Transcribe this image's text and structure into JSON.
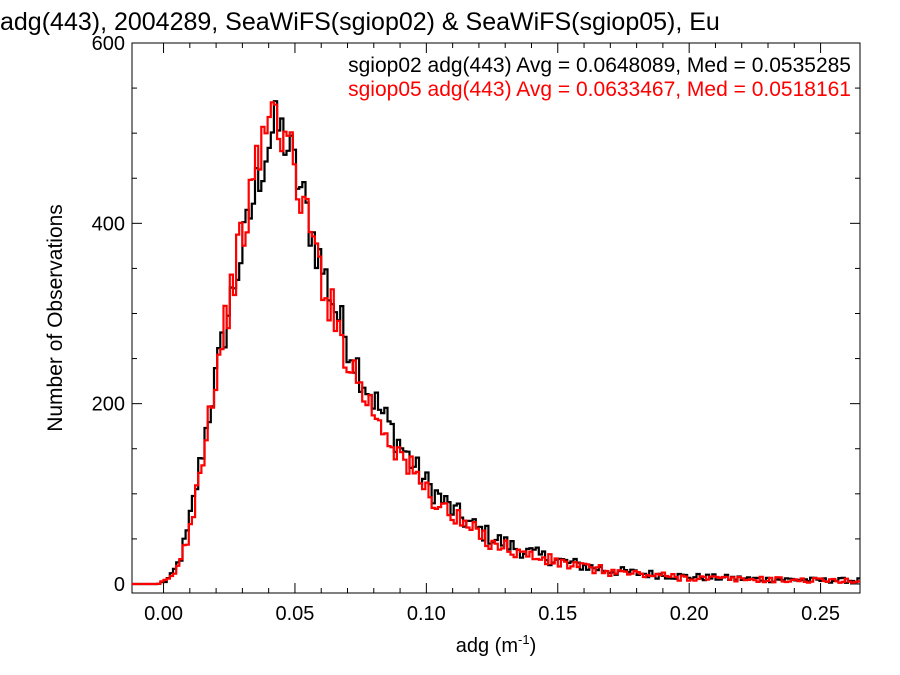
{
  "chart_data": {
    "type": "line",
    "title": "adg(443), 2004289, SeaWiFS(sgiop02) & SeaWiFS(sgiop05), Eu",
    "xlabel": "adg (m",
    "xlabel_sup": "-1",
    "xlabel_close": ")",
    "ylabel": "Number of Observations",
    "xlim": [
      -0.012,
      0.265
    ],
    "ylim": [
      -10,
      600
    ],
    "xticks": [
      0.0,
      0.05,
      0.1,
      0.15,
      0.2,
      0.25
    ],
    "xtick_labels": [
      "0.00",
      "0.05",
      "0.10",
      "0.15",
      "0.20",
      "0.25"
    ],
    "yticks": [
      0,
      200,
      400,
      600
    ],
    "ytick_labels": [
      "0",
      "200",
      "400",
      "600"
    ],
    "bin_width": 0.0012,
    "series": [
      {
        "name": "sgiop02",
        "label": "sgiop02 adg(443) Avg = 0.0648089, Med = 0.0535285",
        "color": "#000000",
        "points": [
          [
            -0.012,
            0
          ],
          [
            -0.002,
            0
          ],
          [
            0.0,
            2
          ],
          [
            0.003,
            8
          ],
          [
            0.006,
            25
          ],
          [
            0.009,
            55
          ],
          [
            0.012,
            100
          ],
          [
            0.015,
            150
          ],
          [
            0.018,
            200
          ],
          [
            0.021,
            245
          ],
          [
            0.024,
            290
          ],
          [
            0.027,
            335
          ],
          [
            0.03,
            370
          ],
          [
            0.033,
            410
          ],
          [
            0.036,
            450
          ],
          [
            0.038,
            470
          ],
          [
            0.04,
            490
          ],
          [
            0.042,
            505
          ],
          [
            0.044,
            505
          ],
          [
            0.046,
            495
          ],
          [
            0.048,
            480
          ],
          [
            0.05,
            460
          ],
          [
            0.053,
            430
          ],
          [
            0.056,
            395
          ],
          [
            0.06,
            355
          ],
          [
            0.064,
            318
          ],
          [
            0.068,
            285
          ],
          [
            0.072,
            255
          ],
          [
            0.076,
            228
          ],
          [
            0.08,
            205
          ],
          [
            0.085,
            180
          ],
          [
            0.09,
            155
          ],
          [
            0.095,
            132
          ],
          [
            0.1,
            112
          ],
          [
            0.105,
            96
          ],
          [
            0.11,
            82
          ],
          [
            0.115,
            70
          ],
          [
            0.12,
            60
          ],
          [
            0.125,
            52
          ],
          [
            0.13,
            45
          ],
          [
            0.135,
            39
          ],
          [
            0.14,
            34
          ],
          [
            0.145,
            30
          ],
          [
            0.15,
            26
          ],
          [
            0.16,
            20
          ],
          [
            0.17,
            15
          ],
          [
            0.18,
            12
          ],
          [
            0.19,
            10
          ],
          [
            0.2,
            8
          ],
          [
            0.21,
            7
          ],
          [
            0.22,
            6
          ],
          [
            0.23,
            5
          ],
          [
            0.24,
            5
          ],
          [
            0.25,
            4
          ],
          [
            0.265,
            4
          ]
        ]
      },
      {
        "name": "sgiop05",
        "label": "sgiop05 adg(443) Avg = 0.0633467, Med = 0.0518161",
        "color": "#ff0000",
        "points": [
          [
            -0.012,
            0
          ],
          [
            -0.002,
            0
          ],
          [
            0.0,
            2
          ],
          [
            0.003,
            7
          ],
          [
            0.006,
            22
          ],
          [
            0.009,
            50
          ],
          [
            0.012,
            95
          ],
          [
            0.015,
            148
          ],
          [
            0.018,
            200
          ],
          [
            0.021,
            250
          ],
          [
            0.024,
            298
          ],
          [
            0.027,
            345
          ],
          [
            0.03,
            385
          ],
          [
            0.033,
            428
          ],
          [
            0.036,
            470
          ],
          [
            0.038,
            500
          ],
          [
            0.04,
            515
          ],
          [
            0.042,
            520
          ],
          [
            0.044,
            515
          ],
          [
            0.046,
            500
          ],
          [
            0.048,
            480
          ],
          [
            0.05,
            458
          ],
          [
            0.053,
            425
          ],
          [
            0.056,
            388
          ],
          [
            0.06,
            345
          ],
          [
            0.064,
            305
          ],
          [
            0.068,
            270
          ],
          [
            0.072,
            240
          ],
          [
            0.076,
            214
          ],
          [
            0.08,
            192
          ],
          [
            0.085,
            168
          ],
          [
            0.09,
            144
          ],
          [
            0.095,
            123
          ],
          [
            0.1,
            104
          ],
          [
            0.105,
            88
          ],
          [
            0.11,
            75
          ],
          [
            0.115,
            64
          ],
          [
            0.12,
            55
          ],
          [
            0.125,
            47
          ],
          [
            0.13,
            41
          ],
          [
            0.135,
            35
          ],
          [
            0.14,
            31
          ],
          [
            0.145,
            27
          ],
          [
            0.15,
            24
          ],
          [
            0.16,
            18
          ],
          [
            0.17,
            14
          ],
          [
            0.18,
            11
          ],
          [
            0.19,
            9
          ],
          [
            0.2,
            7
          ],
          [
            0.21,
            6
          ],
          [
            0.22,
            5
          ],
          [
            0.23,
            5
          ],
          [
            0.24,
            4
          ],
          [
            0.25,
            4
          ],
          [
            0.265,
            3
          ]
        ]
      }
    ],
    "legend_placement": "top-right",
    "grid": false
  }
}
